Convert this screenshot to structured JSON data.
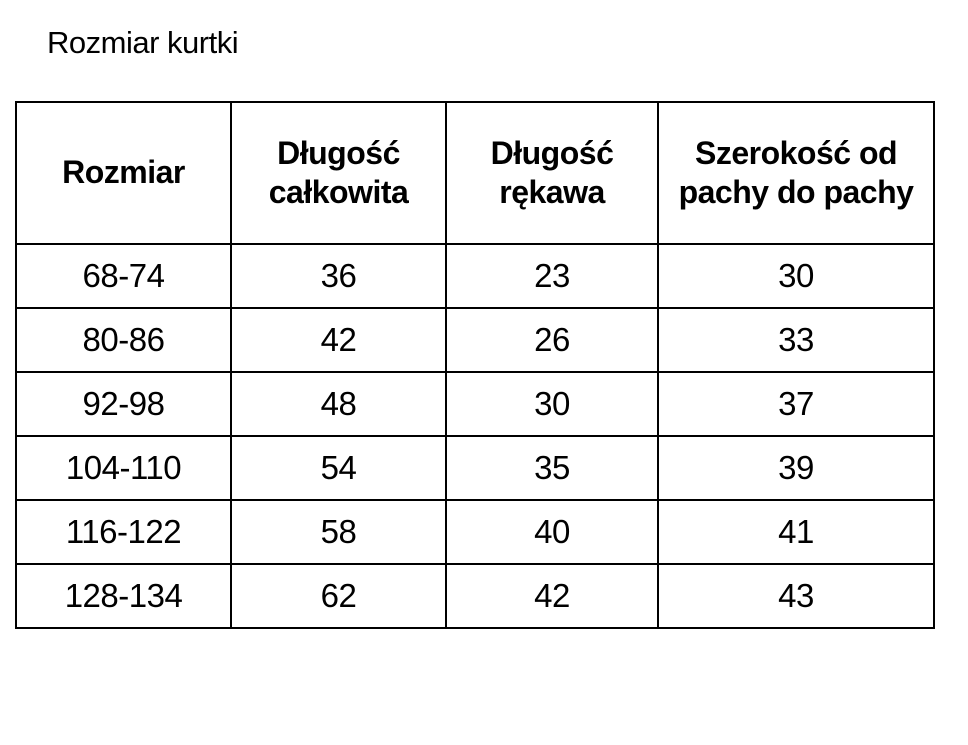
{
  "page": {
    "title": "Rozmiar kurtki"
  },
  "colors": {
    "background": "#ffffff",
    "text": "#000000",
    "border": "#000000"
  },
  "chart_data": {
    "type": "table",
    "title": "Rozmiar kurtki",
    "columns": [
      "Rozmiar",
      "Długość całkowita",
      "Długość rękawa",
      "Szerokość od pachy do pachy"
    ],
    "rows": [
      [
        "68-74",
        "36",
        "23",
        "30"
      ],
      [
        "80-86",
        "42",
        "26",
        "33"
      ],
      [
        "92-98",
        "48",
        "30",
        "37"
      ],
      [
        "104-110",
        "54",
        "35",
        "39"
      ],
      [
        "116-122",
        "58",
        "40",
        "41"
      ],
      [
        "128-134",
        "62",
        "42",
        "43"
      ]
    ],
    "layout": {
      "header_bold": true,
      "grid": "all-borders",
      "alignment": "center"
    }
  }
}
